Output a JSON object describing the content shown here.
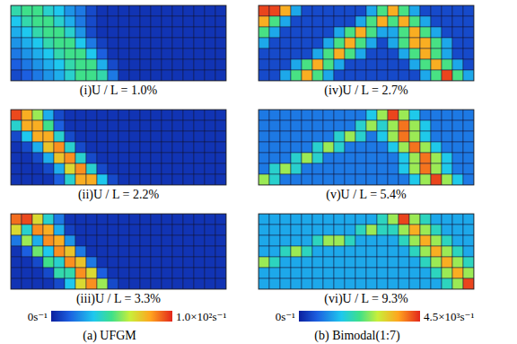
{
  "chart_data": [
    {
      "type": "heatmap",
      "caption": "(a) UFGM",
      "colorbar_range": [
        0,
        100
      ],
      "colorbar_ticks": [
        {
          "value": 0,
          "label": "0s⁻¹"
        },
        {
          "value": 100,
          "label": "1.0×10²s⁻¹"
        }
      ],
      "panels": [
        {
          "title": "(i)U / L = 1.0%",
          "cells": [
            [
              45,
              50,
              50,
              40,
              35,
              25,
              20,
              10,
              5,
              5,
              5,
              5,
              5,
              5,
              5,
              5,
              5,
              5,
              5,
              5
            ],
            [
              35,
              45,
              50,
              50,
              40,
              30,
              20,
              10,
              5,
              5,
              5,
              5,
              5,
              5,
              5,
              5,
              5,
              5,
              5,
              5
            ],
            [
              30,
              35,
              45,
              50,
              50,
              40,
              25,
              10,
              5,
              5,
              5,
              5,
              5,
              5,
              5,
              5,
              5,
              5,
              5,
              5
            ],
            [
              25,
              30,
              35,
              45,
              50,
              50,
              35,
              20,
              8,
              5,
              5,
              5,
              5,
              5,
              5,
              5,
              5,
              5,
              5,
              5
            ],
            [
              20,
              25,
              30,
              35,
              45,
              50,
              50,
              35,
              15,
              5,
              5,
              5,
              5,
              5,
              5,
              5,
              5,
              5,
              5,
              5
            ],
            [
              15,
              20,
              25,
              30,
              35,
              45,
              50,
              50,
              30,
              10,
              5,
              5,
              5,
              5,
              5,
              5,
              5,
              5,
              5,
              5
            ],
            [
              10,
              15,
              20,
              25,
              30,
              40,
              50,
              50,
              45,
              20,
              5,
              5,
              5,
              5,
              5,
              5,
              5,
              5,
              5,
              5
            ]
          ]
        },
        {
          "title": "(ii)U / L = 2.2%",
          "cells": [
            [
              95,
              80,
              60,
              30,
              10,
              5,
              5,
              5,
              5,
              5,
              5,
              5,
              5,
              5,
              5,
              5,
              5,
              5,
              5,
              5
            ],
            [
              40,
              80,
              80,
              50,
              15,
              5,
              5,
              5,
              5,
              5,
              5,
              5,
              5,
              5,
              5,
              5,
              5,
              5,
              5,
              5
            ],
            [
              10,
              35,
              80,
              80,
              40,
              10,
              5,
              5,
              5,
              5,
              5,
              5,
              5,
              5,
              5,
              5,
              5,
              5,
              5,
              5
            ],
            [
              5,
              10,
              30,
              75,
              85,
              40,
              10,
              5,
              5,
              5,
              5,
              5,
              5,
              5,
              5,
              5,
              5,
              5,
              5,
              5
            ],
            [
              5,
              5,
              10,
              30,
              75,
              85,
              40,
              10,
              5,
              5,
              5,
              5,
              5,
              5,
              5,
              5,
              5,
              5,
              5,
              5
            ],
            [
              5,
              5,
              5,
              10,
              30,
              70,
              85,
              40,
              10,
              5,
              5,
              5,
              5,
              5,
              5,
              5,
              5,
              5,
              5,
              5
            ],
            [
              5,
              5,
              5,
              5,
              15,
              40,
              80,
              80,
              35,
              10,
              5,
              5,
              5,
              5,
              5,
              5,
              5,
              5,
              5,
              5
            ]
          ]
        },
        {
          "title": "(iii)U / L = 3.3%",
          "cells": [
            [
              90,
              95,
              70,
              40,
              20,
              5,
              5,
              5,
              5,
              5,
              5,
              5,
              5,
              5,
              5,
              5,
              5,
              5,
              5,
              5
            ],
            [
              70,
              40,
              85,
              80,
              30,
              8,
              5,
              5,
              5,
              5,
              5,
              5,
              5,
              5,
              5,
              5,
              5,
              5,
              5,
              5
            ],
            [
              20,
              60,
              30,
              85,
              80,
              25,
              5,
              5,
              5,
              5,
              5,
              5,
              5,
              5,
              5,
              5,
              5,
              5,
              5,
              5
            ],
            [
              5,
              15,
              55,
              35,
              85,
              75,
              20,
              5,
              5,
              5,
              5,
              5,
              5,
              5,
              5,
              5,
              5,
              5,
              5,
              5
            ],
            [
              5,
              5,
              10,
              50,
              40,
              85,
              75,
              20,
              5,
              5,
              5,
              5,
              5,
              5,
              5,
              5,
              5,
              5,
              5,
              5
            ],
            [
              5,
              5,
              5,
              10,
              45,
              45,
              85,
              70,
              15,
              5,
              5,
              5,
              5,
              5,
              5,
              5,
              5,
              5,
              5,
              5
            ],
            [
              5,
              5,
              5,
              5,
              10,
              35,
              70,
              85,
              60,
              10,
              5,
              5,
              5,
              5,
              5,
              5,
              5,
              5,
              5,
              5
            ]
          ]
        }
      ]
    },
    {
      "type": "heatmap",
      "caption": "(b) Bimodal(1:7)",
      "colorbar_range": [
        0,
        4500
      ],
      "colorbar_ticks": [
        {
          "value": 0,
          "label": "0s⁻¹"
        },
        {
          "value": 4500,
          "label": "4.5×10³s⁻¹"
        }
      ],
      "panels": [
        {
          "title": "(iv)U / L = 2.7%",
          "cells": [
            [
              4300,
              4300,
              3600,
              1300,
              450,
              450,
              450,
              450,
              450,
              450,
              1300,
              2300,
              3600,
              2300,
              1300,
              450,
              450,
              450,
              450,
              450
            ],
            [
              3600,
              2300,
              1300,
              450,
              450,
              450,
              450,
              450,
              450,
              1300,
              2300,
              3600,
              2300,
              3600,
              2300,
              1300,
              450,
              450,
              450,
              450
            ],
            [
              2300,
              1300,
              450,
              450,
              450,
              450,
              450,
              1300,
              2300,
              3600,
              2300,
              1300,
              1300,
              2300,
              3600,
              2300,
              1300,
              450,
              450,
              450
            ],
            [
              1300,
              450,
              450,
              450,
              450,
              450,
              1300,
              2300,
              3600,
              2300,
              1300,
              450,
              1300,
              2300,
              3600,
              3600,
              2300,
              1300,
              450,
              450
            ],
            [
              450,
              450,
              450,
              450,
              450,
              1300,
              2300,
              3600,
              2300,
              1300,
              450,
              450,
              450,
              1300,
              2300,
              3600,
              2300,
              1300,
              450,
              450
            ],
            [
              450,
              450,
              450,
              1300,
              2300,
              3600,
              2300,
              1300,
              450,
              450,
              450,
              450,
              450,
              450,
              1300,
              2300,
              3600,
              2300,
              1300,
              450
            ],
            [
              450,
              450,
              1300,
              2300,
              3600,
              2300,
              1300,
              450,
              450,
              450,
              450,
              450,
              450,
              450,
              450,
              1300,
              2300,
              4300,
              2300,
              1300
            ]
          ]
        },
        {
          "title": "(v)U / L = 5.4%",
          "cells": [
            [
              900,
              900,
              900,
              900,
              900,
              900,
              900,
              900,
              900,
              900,
              1600,
              2700,
              4300,
              2700,
              1600,
              900,
              900,
              900,
              900,
              900
            ],
            [
              900,
              900,
              900,
              900,
              900,
              900,
              900,
              900,
              900,
              1800,
              2700,
              1800,
              2700,
              4000,
              2700,
              1600,
              900,
              900,
              900,
              900
            ],
            [
              900,
              900,
              900,
              900,
              900,
              900,
              900,
              1800,
              2700,
              1800,
              900,
              1600,
              2700,
              4000,
              2700,
              1600,
              900,
              900,
              900,
              900
            ],
            [
              900,
              900,
              900,
              900,
              900,
              1800,
              2700,
              1800,
              900,
              900,
              900,
              900,
              1600,
              2700,
              4000,
              2700,
              1600,
              900,
              900,
              900
            ],
            [
              900,
              900,
              900,
              1800,
              2700,
              1800,
              900,
              900,
              900,
              900,
              900,
              900,
              900,
              1600,
              2700,
              4000,
              2700,
              1600,
              900,
              900
            ],
            [
              900,
              1800,
              2700,
              1800,
              900,
              900,
              900,
              900,
              900,
              900,
              900,
              900,
              900,
              1600,
              2700,
              4000,
              2700,
              1600,
              900,
              900
            ],
            [
              2700,
              1800,
              900,
              900,
              900,
              900,
              900,
              900,
              900,
              900,
              900,
              900,
              900,
              900,
              1600,
              2700,
              4300,
              2700,
              1600,
              900
            ]
          ]
        },
        {
          "title": "(vi)U / L = 9.3%",
          "cells": [
            [
              1300,
              1300,
              1300,
              1300,
              1300,
              1300,
              1300,
              1300,
              1300,
              1300,
              1300,
              1900,
              2700,
              4300,
              2700,
              1900,
              1300,
              1300,
              1300,
              1300
            ],
            [
              1300,
              1300,
              1300,
              1300,
              1300,
              1300,
              1300,
              1300,
              1300,
              1900,
              2700,
              1900,
              1900,
              2700,
              3600,
              2700,
              1900,
              1300,
              1300,
              1300
            ],
            [
              1300,
              1300,
              1300,
              1300,
              1300,
              1900,
              2700,
              2700,
              1900,
              1300,
              1300,
              1300,
              1300,
              1900,
              2700,
              3600,
              2700,
              1900,
              1300,
              1300
            ],
            [
              1300,
              1300,
              1900,
              2700,
              1900,
              1300,
              1300,
              1300,
              1300,
              1300,
              1300,
              1300,
              1300,
              1300,
              1900,
              2700,
              3600,
              2700,
              1900,
              1300
            ],
            [
              2700,
              1900,
              1300,
              1300,
              1300,
              1300,
              1300,
              1300,
              1300,
              1300,
              1300,
              1300,
              1300,
              1300,
              1300,
              1900,
              2700,
              3600,
              2700,
              1900
            ],
            [
              1300,
              1300,
              1300,
              1300,
              1300,
              1300,
              1300,
              1300,
              1300,
              1300,
              1300,
              1300,
              1300,
              1300,
              1300,
              1300,
              1900,
              2700,
              3600,
              2700
            ],
            [
              1300,
              1300,
              1300,
              1300,
              1300,
              1300,
              1300,
              1300,
              1300,
              1300,
              1300,
              1300,
              1300,
              1300,
              1300,
              1300,
              1300,
              1900,
              2700,
              4300
            ]
          ]
        }
      ]
    }
  ]
}
